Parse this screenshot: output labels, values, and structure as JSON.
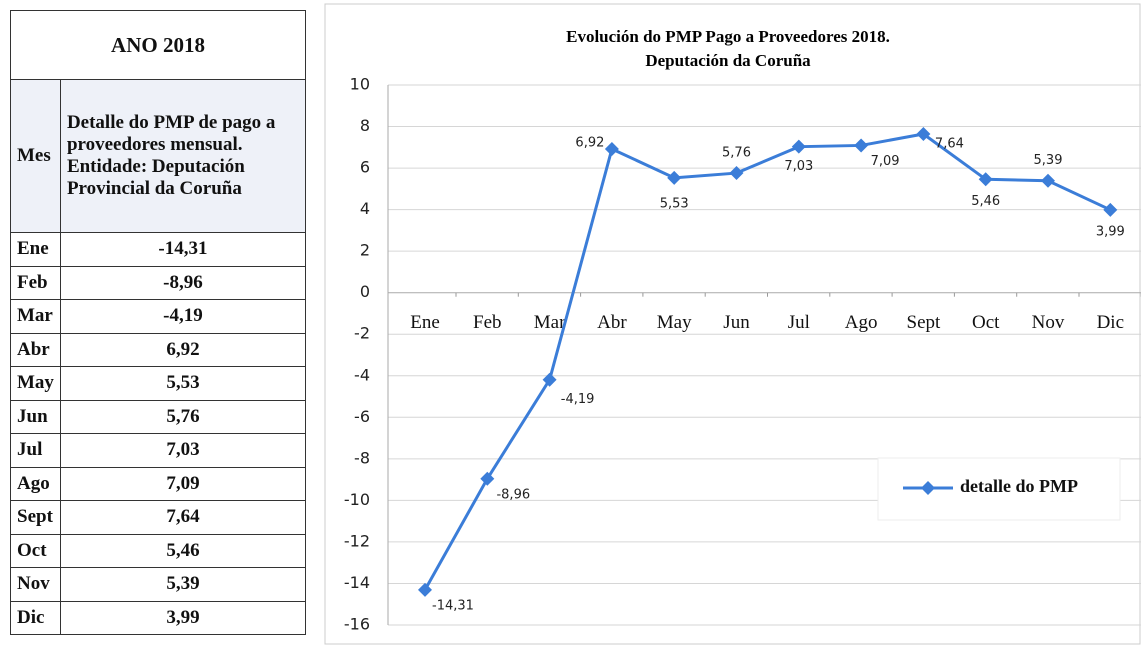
{
  "table": {
    "title": "ANO 2018",
    "header": [
      "Mes",
      "Detalle do PMP de pago a proveedores mensual. Entidade: Deputación Provincial da Coruña"
    ],
    "rows": [
      [
        "Ene",
        "-14,31"
      ],
      [
        "Feb",
        "-8,96"
      ],
      [
        "Mar",
        "-4,19"
      ],
      [
        "Abr",
        "6,92"
      ],
      [
        "May",
        "5,53"
      ],
      [
        "Jun",
        "5,76"
      ],
      [
        "Jul",
        "7,03"
      ],
      [
        "Ago",
        "7,09"
      ],
      [
        "Sept",
        "7,64"
      ],
      [
        "Oct",
        "5,46"
      ],
      [
        "Nov",
        "5,39"
      ],
      [
        "Dic",
        "3,99"
      ]
    ]
  },
  "chart_data": {
    "type": "line",
    "title": [
      "Evolución do PMP Pago a Proveedores  2018.",
      "Deputación da Coruña"
    ],
    "categories": [
      "Ene",
      "Feb",
      "Mar",
      "Abr",
      "May",
      "Jun",
      "Jul",
      "Ago",
      "Sept",
      "Oct",
      "Nov",
      "Dic"
    ],
    "series": [
      {
        "name": "detalle do PMP",
        "color": "#3b7dd8",
        "values": [
          -14.31,
          -8.96,
          -4.19,
          6.92,
          5.53,
          5.76,
          7.03,
          7.09,
          7.64,
          5.46,
          5.39,
          3.99
        ],
        "value_labels": [
          "-14,31",
          "-8,96",
          "-4,19",
          "6,92",
          "5,53",
          "5,76",
          "7,03",
          "7,09",
          "7,64",
          "5,46",
          "5,39",
          "3,99"
        ]
      }
    ],
    "ylim": [
      -16,
      10
    ],
    "yticks": [
      10,
      8,
      6,
      4,
      2,
      0,
      -2,
      -4,
      -6,
      -8,
      -10,
      -12,
      -14,
      -16
    ],
    "grid": true,
    "legend": "right"
  }
}
